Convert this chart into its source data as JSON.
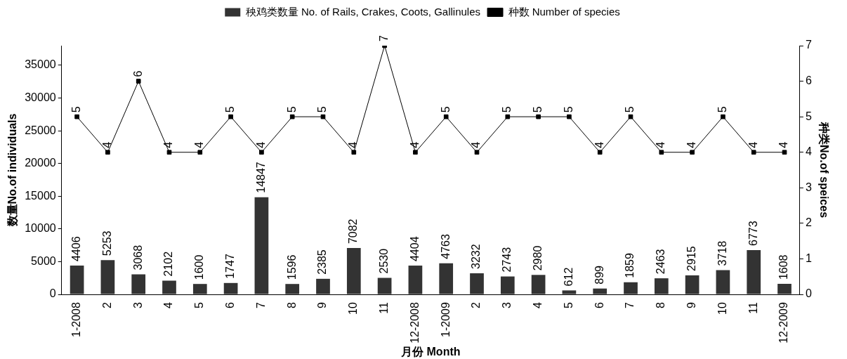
{
  "chart_data": {
    "type": "bar",
    "xlabel": "月份 Month",
    "ylabel": "数量No.of individuals",
    "y2label": "种类No.of speices",
    "categories": [
      "1-2008",
      "2",
      "3",
      "4",
      "5",
      "6",
      "7",
      "8",
      "9",
      "10",
      "11",
      "12-2008",
      "1-2009",
      "2",
      "3",
      "4",
      "5",
      "6",
      "7",
      "8",
      "9",
      "10",
      "11",
      "12-2009"
    ],
    "series": [
      {
        "name": "秧鸡类数量 No. of Rails, Crakes, Coots, Gallinules",
        "color": "#333333",
        "values": [
          4406,
          5253,
          3068,
          2102,
          1600,
          1747,
          14847,
          1596,
          2385,
          7082,
          2530,
          4404,
          4763,
          3232,
          2743,
          2980,
          612,
          899,
          1859,
          2463,
          2915,
          3718,
          6773,
          1608
        ]
      },
      {
        "name": "种数 Number of species",
        "type": "line",
        "axis": "y2",
        "color": "#000000",
        "values": [
          5,
          4,
          6,
          4,
          4,
          5,
          4,
          5,
          5,
          4,
          7,
          4,
          5,
          4,
          5,
          5,
          5,
          4,
          5,
          4,
          4,
          5,
          4,
          4
        ]
      }
    ],
    "ylim": [
      0,
      38000
    ],
    "yticks": [
      0,
      5000,
      10000,
      15000,
      20000,
      25000,
      30000,
      35000
    ],
    "y2lim": [
      0,
      7
    ],
    "y2ticks": [
      0,
      1,
      2,
      3,
      4,
      5,
      6,
      7
    ],
    "grid": false,
    "legend": "top",
    "marker": "square",
    "line_style": "solid",
    "data_labels": true
  }
}
